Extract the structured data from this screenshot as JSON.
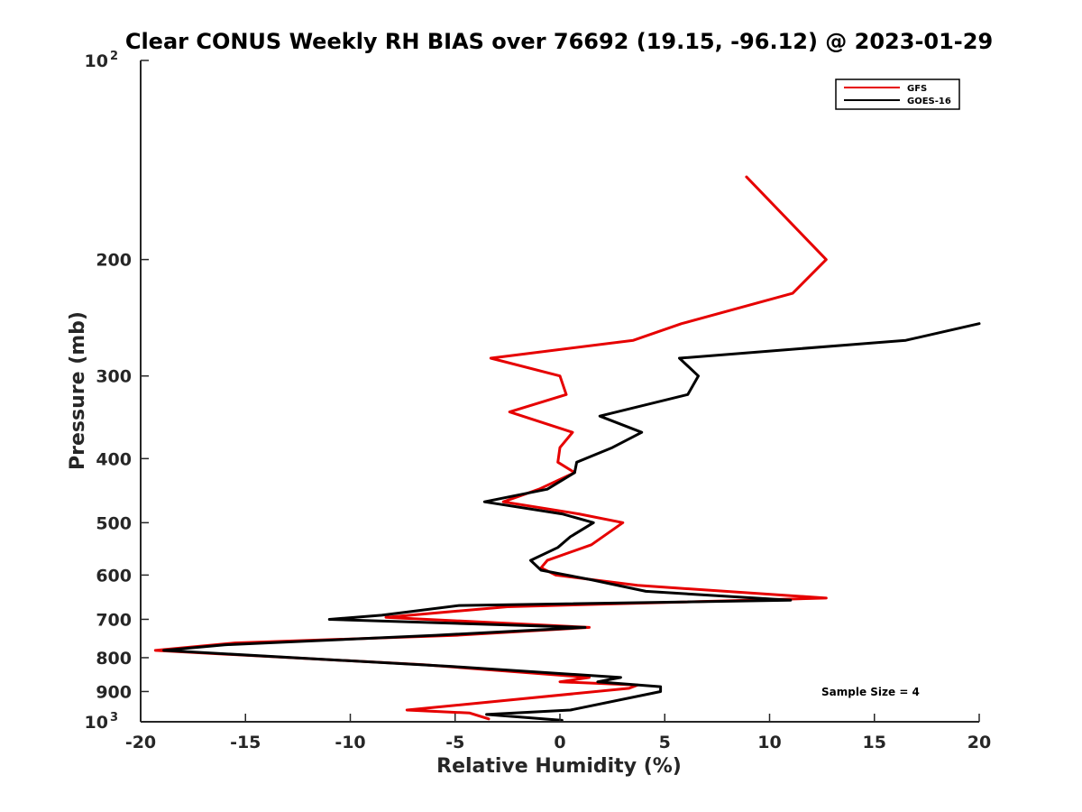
{
  "chart_data": {
    "type": "line",
    "title": "Clear CONUS Weekly RH BIAS over 76692 (19.15, -96.12) @ 2023-01-29",
    "xlabel": "Relative Humidity (%)",
    "ylabel": "Pressure (mb)",
    "xlim": [
      -20,
      20
    ],
    "ylim": [
      100,
      1000
    ],
    "yscale": "log",
    "y_reversed": true,
    "x_ticks": [
      {
        "value": -20,
        "label": "-20"
      },
      {
        "value": -15,
        "label": "-15"
      },
      {
        "value": -10,
        "label": "-10"
      },
      {
        "value": -5,
        "label": "-5"
      },
      {
        "value": 0,
        "label": "0"
      },
      {
        "value": 5,
        "label": "5"
      },
      {
        "value": 10,
        "label": "10"
      },
      {
        "value": 15,
        "label": "15"
      },
      {
        "value": 20,
        "label": "20"
      }
    ],
    "y_ticks": [
      {
        "value": 100,
        "base": "10",
        "exp": "2"
      },
      {
        "value": 200,
        "label": "200"
      },
      {
        "value": 300,
        "label": "300"
      },
      {
        "value": 400,
        "label": "400"
      },
      {
        "value": 500,
        "label": "500"
      },
      {
        "value": 600,
        "label": "600"
      },
      {
        "value": 700,
        "label": "700"
      },
      {
        "value": 800,
        "label": "800"
      },
      {
        "value": 900,
        "label": "900"
      },
      {
        "value": 1000,
        "base": "10",
        "exp": "3"
      }
    ],
    "legend": {
      "position": "top-right"
    },
    "annotation": "Sample Size = 4",
    "series": [
      {
        "name": "GFS",
        "color": "#e60000",
        "points": [
          [
            8.9,
            150
          ],
          [
            12.7,
            200
          ],
          [
            11.1,
            225
          ],
          [
            5.8,
            250
          ],
          [
            3.5,
            265
          ],
          [
            -3.3,
            282
          ],
          [
            0.0,
            300
          ],
          [
            0.3,
            320
          ],
          [
            -2.4,
            340
          ],
          [
            0.6,
            365
          ],
          [
            0.0,
            385
          ],
          [
            -0.1,
            405
          ],
          [
            0.7,
            420
          ],
          [
            -1.0,
            445
          ],
          [
            -2.7,
            465
          ],
          [
            0.9,
            485
          ],
          [
            3.0,
            500
          ],
          [
            1.5,
            540
          ],
          [
            -0.6,
            570
          ],
          [
            -0.9,
            585
          ],
          [
            -0.2,
            600
          ],
          [
            3.7,
            622
          ],
          [
            12.7,
            650
          ],
          [
            -2.5,
            670
          ],
          [
            -8.3,
            695
          ],
          [
            1.4,
            720
          ],
          [
            -4.9,
            740
          ],
          [
            -15.5,
            760
          ],
          [
            -19.3,
            780
          ],
          [
            -6.5,
            820
          ],
          [
            1.4,
            857
          ],
          [
            0.0,
            870
          ],
          [
            3.7,
            880
          ],
          [
            3.3,
            890
          ],
          [
            -7.3,
            960
          ],
          [
            -4.3,
            970
          ],
          [
            -3.4,
            990
          ]
        ]
      },
      {
        "name": "GOES-16",
        "color": "#000000",
        "points": [
          [
            20.0,
            250
          ],
          [
            16.5,
            265
          ],
          [
            5.7,
            282
          ],
          [
            6.6,
            300
          ],
          [
            6.1,
            320
          ],
          [
            1.9,
            345
          ],
          [
            3.9,
            365
          ],
          [
            2.5,
            385
          ],
          [
            0.8,
            405
          ],
          [
            0.7,
            420
          ],
          [
            -0.6,
            445
          ],
          [
            -3.6,
            465
          ],
          [
            0.1,
            485
          ],
          [
            1.6,
            500
          ],
          [
            0.5,
            525
          ],
          [
            -0.1,
            545
          ],
          [
            -1.4,
            570
          ],
          [
            -0.9,
            590
          ],
          [
            1.5,
            610
          ],
          [
            4.1,
            635
          ],
          [
            11.0,
            655
          ],
          [
            -4.8,
            667
          ],
          [
            -8.5,
            690
          ],
          [
            -11.0,
            700
          ],
          [
            1.2,
            720
          ],
          [
            -5.9,
            740
          ],
          [
            -16.0,
            765
          ],
          [
            -18.9,
            780
          ],
          [
            -5.1,
            825
          ],
          [
            2.9,
            857
          ],
          [
            1.8,
            870
          ],
          [
            4.8,
            885
          ],
          [
            4.8,
            900
          ],
          [
            0.5,
            960
          ],
          [
            -3.5,
            975
          ],
          [
            0.1,
            995
          ]
        ]
      }
    ]
  }
}
